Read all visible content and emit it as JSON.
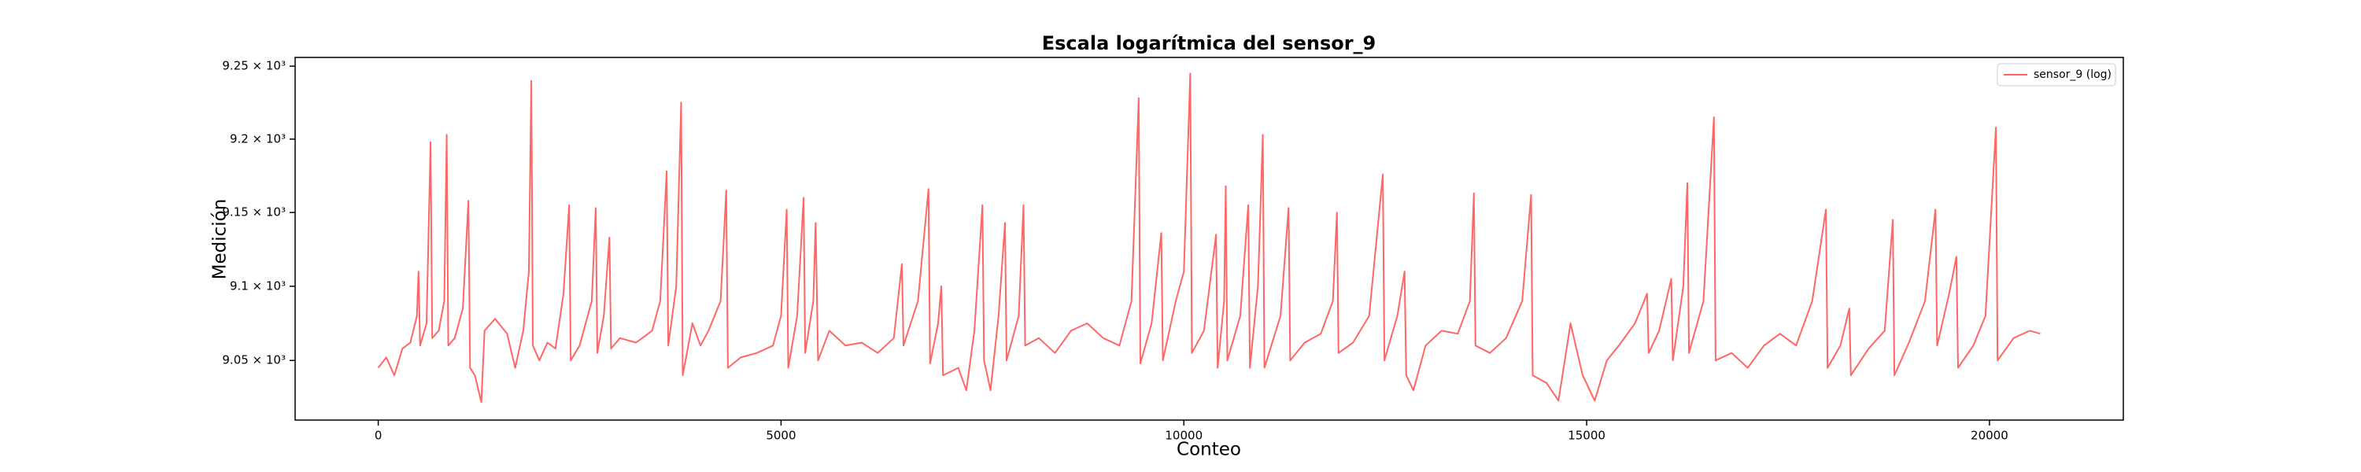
{
  "chart_data": {
    "type": "line",
    "title": "Escala logarítmica del sensor_9",
    "xlabel": "Conteo",
    "ylabel": "Medición",
    "yscale": "log",
    "legend": "upper right",
    "xlim": [
      -1031.5,
      21661.5
    ],
    "ylim": [
      9010,
      9256
    ],
    "xticks": [
      0,
      5000,
      10000,
      15000,
      20000
    ],
    "yticks": [
      {
        "value": 9050,
        "label": "9.05 × 10³"
      },
      {
        "value": 9100,
        "label": "9.1 × 10³"
      },
      {
        "value": 9150,
        "label": "9.15 × 10³"
      },
      {
        "value": 9200,
        "label": "9.2 × 10³"
      },
      {
        "value": 9250,
        "label": "9.25 × 10³"
      }
    ],
    "x": [
      0,
      100,
      200,
      300,
      400,
      480,
      500,
      520,
      600,
      650,
      670,
      750,
      820,
      850,
      870,
      950,
      1050,
      1120,
      1140,
      1200,
      1280,
      1320,
      1450,
      1600,
      1700,
      1800,
      1870,
      1900,
      1920,
      2000,
      2100,
      2200,
      2300,
      2370,
      2390,
      2500,
      2650,
      2700,
      2720,
      2800,
      2870,
      2890,
      3000,
      3200,
      3400,
      3500,
      3580,
      3600,
      3700,
      3760,
      3780,
      3900,
      4000,
      4100,
      4250,
      4320,
      4340,
      4500,
      4700,
      4900,
      5000,
      5070,
      5090,
      5200,
      5280,
      5300,
      5400,
      5430,
      5460,
      5600,
      5800,
      6000,
      6200,
      6400,
      6500,
      6520,
      6700,
      6830,
      6850,
      6950,
      6990,
      7010,
      7200,
      7300,
      7400,
      7500,
      7520,
      7600,
      7700,
      7780,
      7800,
      7950,
      8010,
      8030,
      8200,
      8400,
      8600,
      8800,
      9000,
      9200,
      9350,
      9440,
      9460,
      9600,
      9720,
      9740,
      9900,
      10000,
      10080,
      10100,
      10250,
      10400,
      10420,
      10500,
      10520,
      10540,
      10700,
      10800,
      10820,
      10920,
      10980,
      11000,
      11200,
      11300,
      11320,
      11500,
      11700,
      11850,
      11900,
      11920,
      12100,
      12300,
      12470,
      12490,
      12650,
      12740,
      12760,
      12850,
      13000,
      13200,
      13400,
      13550,
      13600,
      13620,
      13800,
      14000,
      14200,
      14310,
      14330,
      14500,
      14650,
      14800,
      14950,
      15100,
      15250,
      15400,
      15600,
      15750,
      15770,
      15900,
      16050,
      16070,
      16200,
      16250,
      16270,
      16450,
      16580,
      16600,
      16800,
      17000,
      17200,
      17400,
      17600,
      17800,
      17970,
      17990,
      18150,
      18260,
      18280,
      18500,
      18700,
      18800,
      18820,
      19000,
      19200,
      19330,
      19350,
      19500,
      19590,
      19610,
      19800,
      19950,
      20080,
      20100,
      20300,
      20500,
      20630
    ],
    "series": [
      {
        "name": "sensor_9 (log)",
        "color": "#ff6666",
        "values": [
          9045,
          9052,
          9040,
          9058,
          9062,
          9080,
          9110,
          9060,
          9075,
          9198,
          9065,
          9070,
          9090,
          9203,
          9060,
          9065,
          9085,
          9158,
          9045,
          9040,
          9022,
          9070,
          9078,
          9068,
          9045,
          9070,
          9110,
          9240,
          9060,
          9050,
          9062,
          9058,
          9095,
          9155,
          9050,
          9060,
          9090,
          9153,
          9055,
          9080,
          9133,
          9058,
          9065,
          9062,
          9070,
          9090,
          9178,
          9060,
          9100,
          9225,
          9040,
          9075,
          9060,
          9070,
          9090,
          9165,
          9045,
          9052,
          9055,
          9060,
          9080,
          9152,
          9045,
          9080,
          9160,
          9055,
          9090,
          9143,
          9050,
          9070,
          9060,
          9062,
          9055,
          9065,
          9115,
          9060,
          9090,
          9166,
          9048,
          9075,
          9100,
          9040,
          9045,
          9030,
          9070,
          9155,
          9050,
          9030,
          9080,
          9143,
          9050,
          9080,
          9155,
          9060,
          9065,
          9055,
          9070,
          9075,
          9065,
          9060,
          9090,
          9228,
          9048,
          9075,
          9136,
          9050,
          9090,
          9110,
          9245,
          9055,
          9070,
          9135,
          9045,
          9090,
          9168,
          9050,
          9080,
          9155,
          9045,
          9100,
          9203,
          9045,
          9080,
          9153,
          9050,
          9062,
          9068,
          9090,
          9150,
          9055,
          9062,
          9080,
          9176,
          9050,
          9080,
          9110,
          9040,
          9030,
          9060,
          9070,
          9068,
          9090,
          9163,
          9060,
          9055,
          9065,
          9090,
          9162,
          9040,
          9035,
          9023,
          9075,
          9040,
          9023,
          9050,
          9060,
          9075,
          9095,
          9055,
          9070,
          9105,
          9050,
          9100,
          9170,
          9055,
          9090,
          9215,
          9050,
          9055,
          9045,
          9060,
          9068,
          9060,
          9090,
          9152,
          9045,
          9060,
          9085,
          9040,
          9058,
          9070,
          9145,
          9040,
          9062,
          9090,
          9152,
          9060,
          9095,
          9120,
          9045,
          9060,
          9080,
          9208,
          9050,
          9065,
          9070,
          9068
        ]
      }
    ]
  }
}
